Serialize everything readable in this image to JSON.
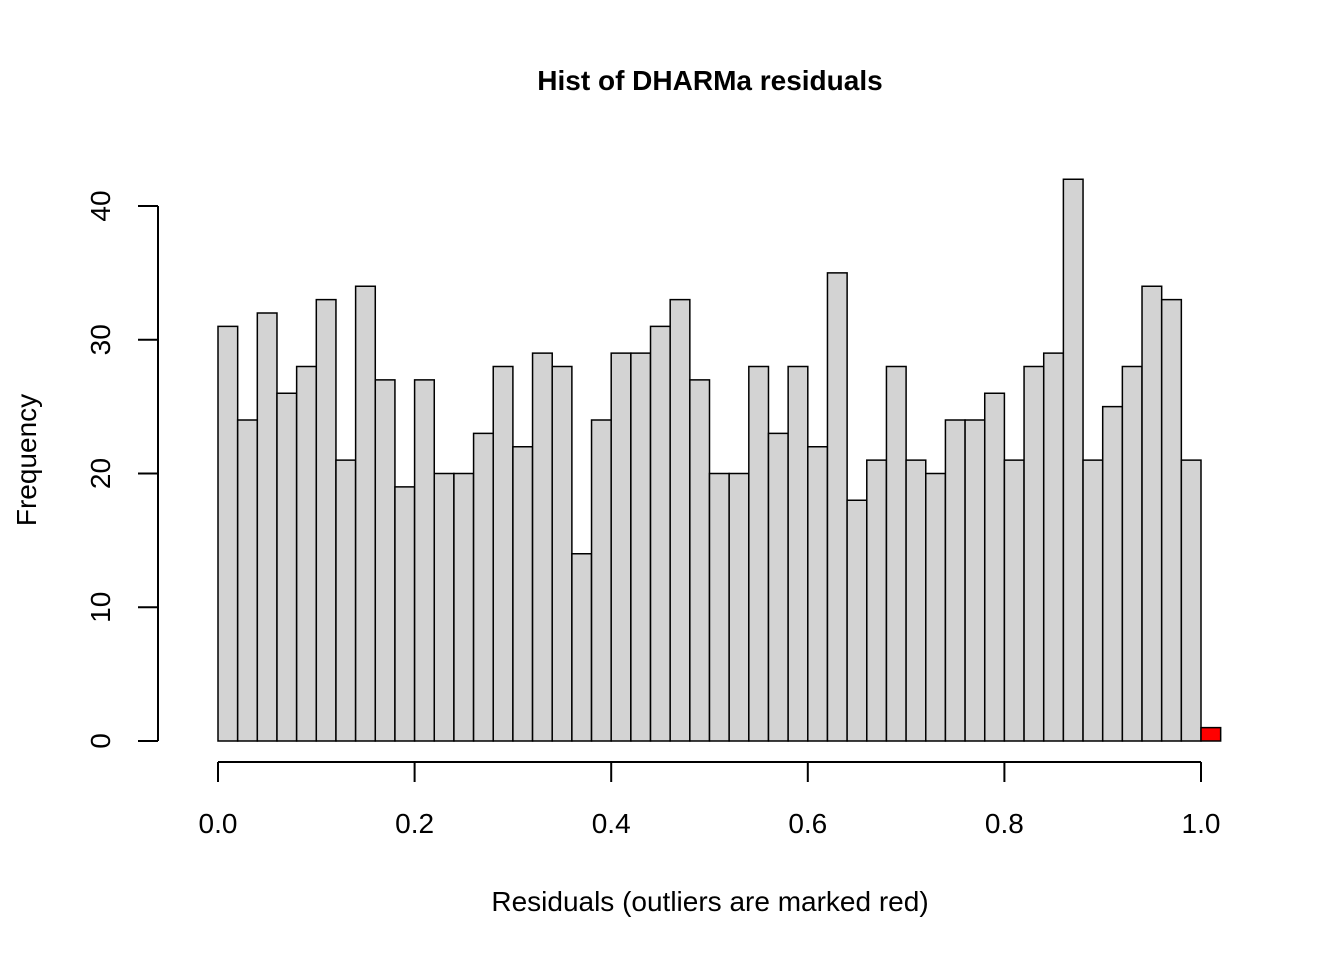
{
  "chart_data": {
    "type": "bar",
    "title": "Hist of DHARMa residuals",
    "xlabel": "Residuals (outliers are marked red)",
    "ylabel": "Frequency",
    "xlim": [
      0.0,
      1.0
    ],
    "ylim": [
      0,
      40
    ],
    "x_ticks": [
      "0.0",
      "0.2",
      "0.4",
      "0.6",
      "0.8",
      "1.0"
    ],
    "y_ticks": [
      "0",
      "10",
      "20",
      "30",
      "40"
    ],
    "bin_width": 0.02,
    "bin_starts": [
      0.0,
      0.02,
      0.04,
      0.06,
      0.08,
      0.1,
      0.12,
      0.14,
      0.16,
      0.18,
      0.2,
      0.22,
      0.24,
      0.26,
      0.28,
      0.3,
      0.32,
      0.34,
      0.36,
      0.38,
      0.4,
      0.42,
      0.44,
      0.46,
      0.48,
      0.5,
      0.52,
      0.54,
      0.56,
      0.58,
      0.6,
      0.62,
      0.64,
      0.66,
      0.68,
      0.7,
      0.72,
      0.74,
      0.76,
      0.78,
      0.8,
      0.82,
      0.84,
      0.86,
      0.88,
      0.9,
      0.92,
      0.94,
      0.96,
      0.98,
      1.0
    ],
    "values": [
      31,
      24,
      32,
      26,
      28,
      33,
      21,
      34,
      27,
      19,
      27,
      20,
      20,
      23,
      28,
      22,
      29,
      28,
      14,
      24,
      29,
      29,
      31,
      33,
      27,
      20,
      20,
      28,
      23,
      28,
      22,
      35,
      18,
      21,
      28,
      21,
      20,
      24,
      24,
      26,
      21,
      28,
      29,
      42,
      21,
      25,
      28,
      34,
      33,
      21,
      1
    ],
    "outlier_bins": [
      50
    ],
    "colors": {
      "bar_fill": "#d3d3d3",
      "outlier_fill": "#ff0000",
      "stroke": "#000000"
    },
    "grid": false,
    "legend": "none"
  }
}
